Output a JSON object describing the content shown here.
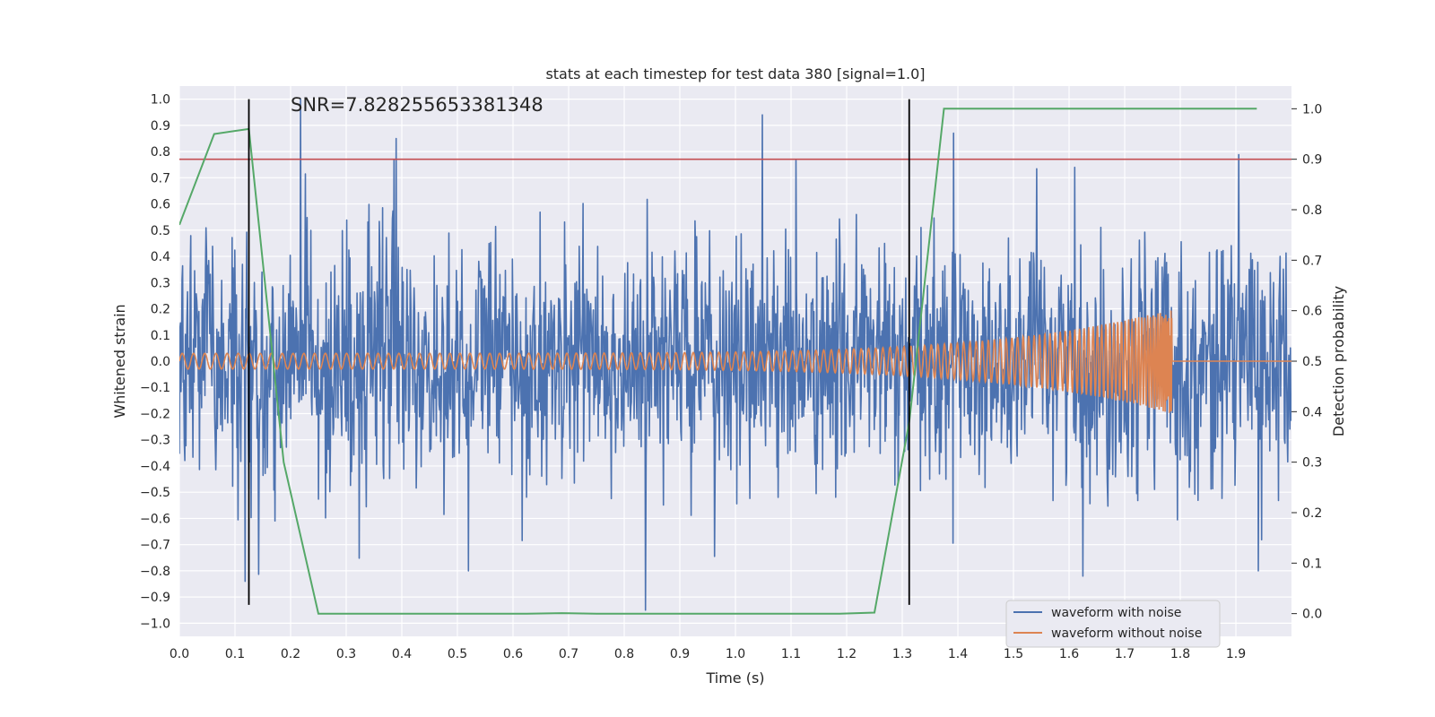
{
  "chart_data": {
    "type": "line",
    "title": "stats at each timestep for test data 380 [signal=1.0]",
    "xlabel": "Time (s)",
    "ylabel": "Whitened strain",
    "ylabel_right": "Detection probability",
    "xlim": [
      0.0,
      2.0
    ],
    "ylim": [
      -1.05,
      1.05
    ],
    "ylim_right": [
      -0.045,
      1.045
    ],
    "x_ticks": [
      0.0,
      0.1,
      0.2,
      0.3,
      0.4,
      0.5,
      0.6,
      0.7,
      0.8,
      0.9,
      1.0,
      1.1,
      1.2,
      1.3,
      1.4,
      1.5,
      1.6,
      1.7,
      1.8,
      1.9
    ],
    "y_ticks": [
      1.0,
      0.9,
      0.8,
      0.7,
      0.6,
      0.5,
      0.4,
      0.3,
      0.2,
      0.1,
      0.0,
      -0.1,
      -0.2,
      -0.3,
      -0.4,
      -0.5,
      -0.6,
      -0.7,
      -0.8,
      -0.9,
      -1.0
    ],
    "y_ticks_right": [
      1.0,
      0.9,
      0.8,
      0.7,
      0.6,
      0.5,
      0.4,
      0.3,
      0.2,
      0.1,
      0.0
    ],
    "annotation": "SNR=7.828255653381348",
    "grid": true,
    "legend_position": "bottom-right",
    "colors": {
      "noisy": "#4c72b0",
      "clean": "#dd8452",
      "probability": "#55a868",
      "threshold": "#c44e52",
      "markers": "#000000",
      "background": "#eaeaf2"
    },
    "noisy_waveform": {
      "name": "waveform with noise",
      "t_start": 0.0,
      "t_end": 2.0,
      "n_samples": 2048,
      "approx_range": [
        -0.95,
        1.0
      ],
      "peaks": [
        {
          "x": 0.218,
          "y": 1.0
        },
        {
          "x": 1.048,
          "y": 0.94
        },
        {
          "x": 1.392,
          "y": 0.87
        },
        {
          "x": 0.39,
          "y": 0.85
        },
        {
          "x": 0.838,
          "y": -0.95
        },
        {
          "x": 1.625,
          "y": -0.82
        },
        {
          "x": 0.52,
          "y": -0.8
        },
        {
          "x": 1.94,
          "y": -0.8
        },
        {
          "x": 0.118,
          "y": -0.84
        }
      ]
    },
    "clean_waveform": {
      "name": "waveform without noise",
      "t_start": 0.0,
      "t_merger": 1.785,
      "t_end": 2.0,
      "amp_start": 0.03,
      "amp_peak": 0.2,
      "cycles_to_merger": 140
    },
    "probability": {
      "axis": "right",
      "x": [
        0.0,
        0.0625,
        0.125,
        0.1875,
        0.25,
        0.375,
        0.5,
        0.625,
        0.6875,
        0.75,
        0.875,
        1.0,
        1.125,
        1.1875,
        1.25,
        1.3125,
        1.375,
        1.5,
        1.625,
        1.75,
        1.875,
        1.9375
      ],
      "y": [
        0.77,
        0.95,
        0.96,
        0.3,
        0.0,
        0.0,
        0.0,
        0.0,
        0.001,
        0.0,
        0.0,
        0.0,
        0.0,
        0.0,
        0.002,
        0.38,
        1.0,
        1.0,
        1.0,
        1.0,
        1.0,
        1.0
      ]
    },
    "threshold": {
      "axis": "right",
      "y": 0.9
    },
    "markers_x": [
      0.125,
      1.3125
    ],
    "legend": [
      "waveform with noise",
      "waveform without noise"
    ]
  }
}
